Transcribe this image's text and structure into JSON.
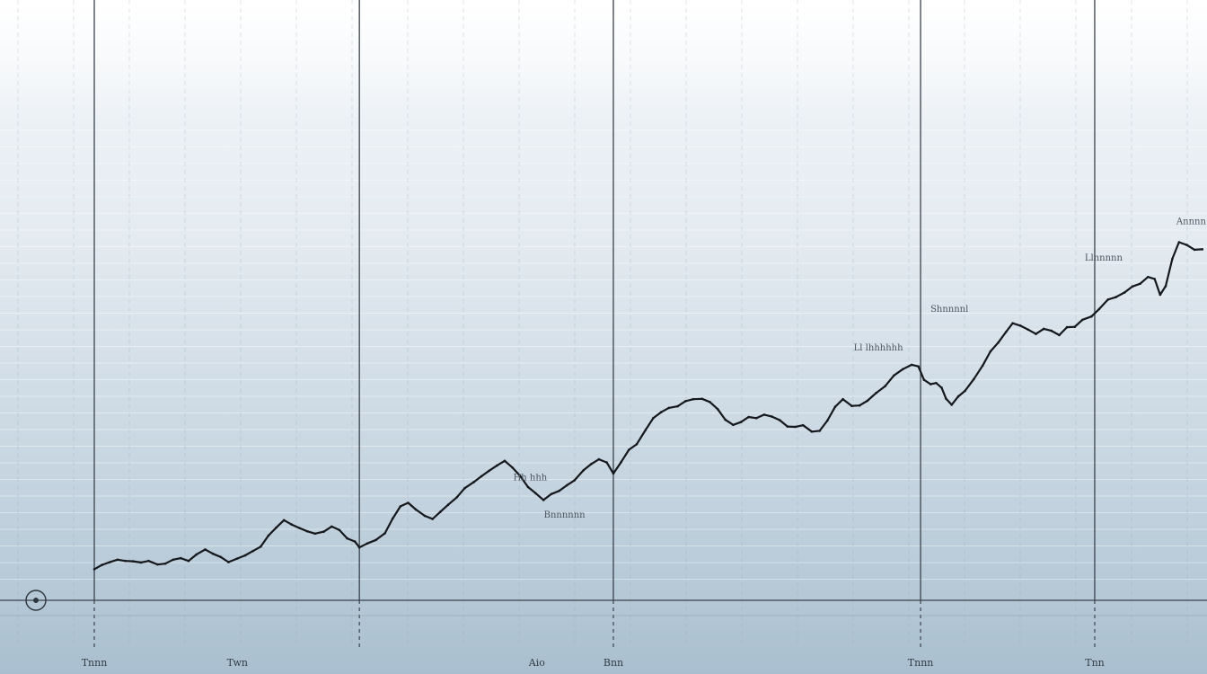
{
  "chart_data": {
    "type": "line",
    "title": "",
    "xlabel": "",
    "ylabel": "",
    "grid": true,
    "legend": "none",
    "xlim": [
      0,
      100
    ],
    "ylim": [
      0,
      100
    ],
    "x_tick_labels": [
      {
        "x": 0.0,
        "label": "Tnnn"
      },
      {
        "x": 12.9,
        "label": "Twn"
      },
      {
        "x": 39.9,
        "label": "Aio"
      },
      {
        "x": 46.8,
        "label": "Bnn"
      },
      {
        "x": 74.5,
        "label": "Tnnn"
      },
      {
        "x": 90.2,
        "label": "Tnn"
      }
    ],
    "event_markers_x": [
      0.0,
      23.9,
      46.8,
      74.5,
      90.2
    ],
    "annotations": [
      {
        "x": 39.3,
        "y": 24.0,
        "text": "Hh hhh"
      },
      {
        "x": 42.4,
        "y": 14.5,
        "text": "Bnnnnnn"
      },
      {
        "x": 70.7,
        "y": 56.8,
        "text": "Ll lhhhhhh"
      },
      {
        "x": 77.1,
        "y": 66.6,
        "text": "Shnnnnl"
      },
      {
        "x": 91.0,
        "y": 79.5,
        "text": "Llnnnnn"
      },
      {
        "x": 98.9,
        "y": 88.8,
        "text": "Annnn"
      }
    ],
    "series": [
      {
        "color": "#15181c",
        "points": [
          [
            0.0,
            1.5
          ],
          [
            0.7,
            2.6
          ],
          [
            1.4,
            3.3
          ],
          [
            2.1,
            3.9
          ],
          [
            2.8,
            3.6
          ],
          [
            3.5,
            3.5
          ],
          [
            4.2,
            3.2
          ],
          [
            4.9,
            3.6
          ],
          [
            5.7,
            2.7
          ],
          [
            6.4,
            2.9
          ],
          [
            7.1,
            3.9
          ],
          [
            7.8,
            4.3
          ],
          [
            8.5,
            3.6
          ],
          [
            9.2,
            5.2
          ],
          [
            10.0,
            6.5
          ],
          [
            10.7,
            5.4
          ],
          [
            11.4,
            4.6
          ],
          [
            12.1,
            3.3
          ],
          [
            12.9,
            4.2
          ],
          [
            13.6,
            5.0
          ],
          [
            14.3,
            6.1
          ],
          [
            15.0,
            7.2
          ],
          [
            15.7,
            10.0
          ],
          [
            16.4,
            12.0
          ],
          [
            17.1,
            13.9
          ],
          [
            17.8,
            12.8
          ],
          [
            18.5,
            11.9
          ],
          [
            19.2,
            11.1
          ],
          [
            19.9,
            10.5
          ],
          [
            20.7,
            11.0
          ],
          [
            21.4,
            12.3
          ],
          [
            22.1,
            11.4
          ],
          [
            22.8,
            9.3
          ],
          [
            23.5,
            8.5
          ],
          [
            23.9,
            7.0
          ],
          [
            24.6,
            8.0
          ],
          [
            25.4,
            8.9
          ],
          [
            26.2,
            10.6
          ],
          [
            26.9,
            14.3
          ],
          [
            27.6,
            17.4
          ],
          [
            28.3,
            18.3
          ],
          [
            29.0,
            16.6
          ],
          [
            29.8,
            15.0
          ],
          [
            30.5,
            14.2
          ],
          [
            31.2,
            16.0
          ],
          [
            31.9,
            17.8
          ],
          [
            32.7,
            19.7
          ],
          [
            33.4,
            22.0
          ],
          [
            34.2,
            23.5
          ],
          [
            34.9,
            25.0
          ],
          [
            35.6,
            26.4
          ],
          [
            36.3,
            27.7
          ],
          [
            37.0,
            28.9
          ],
          [
            37.7,
            27.2
          ],
          [
            38.4,
            25.1
          ],
          [
            39.1,
            22.3
          ],
          [
            39.8,
            20.7
          ],
          [
            40.5,
            19.0
          ],
          [
            41.2,
            20.5
          ],
          [
            41.9,
            21.3
          ],
          [
            42.6,
            22.7
          ],
          [
            43.3,
            24.0
          ],
          [
            44.1,
            26.5
          ],
          [
            44.8,
            28.1
          ],
          [
            45.5,
            29.3
          ],
          [
            46.2,
            28.5
          ],
          [
            46.8,
            25.7
          ],
          [
            47.5,
            28.6
          ],
          [
            48.2,
            31.7
          ],
          [
            48.9,
            33.1
          ],
          [
            49.7,
            36.7
          ],
          [
            50.4,
            39.7
          ],
          [
            51.1,
            41.2
          ],
          [
            51.8,
            42.3
          ],
          [
            52.6,
            42.7
          ],
          [
            53.3,
            44.0
          ],
          [
            54.0,
            44.5
          ],
          [
            54.8,
            44.6
          ],
          [
            55.5,
            43.8
          ],
          [
            56.2,
            42.0
          ],
          [
            56.9,
            39.3
          ],
          [
            57.6,
            38.0
          ],
          [
            58.3,
            38.7
          ],
          [
            59.0,
            40.0
          ],
          [
            59.7,
            39.7
          ],
          [
            60.4,
            40.6
          ],
          [
            61.1,
            40.1
          ],
          [
            61.8,
            39.2
          ],
          [
            62.5,
            37.6
          ],
          [
            63.2,
            37.5
          ],
          [
            63.9,
            37.9
          ],
          [
            64.7,
            36.3
          ],
          [
            65.4,
            36.5
          ],
          [
            66.1,
            39.1
          ],
          [
            66.8,
            42.6
          ],
          [
            67.5,
            44.5
          ],
          [
            68.3,
            42.8
          ],
          [
            69.0,
            42.9
          ],
          [
            69.7,
            44.1
          ],
          [
            70.5,
            46.1
          ],
          [
            71.3,
            47.8
          ],
          [
            72.1,
            50.5
          ],
          [
            72.9,
            52.1
          ],
          [
            73.7,
            53.2
          ],
          [
            74.3,
            52.8
          ],
          [
            74.8,
            49.4
          ],
          [
            75.4,
            48.3
          ],
          [
            75.9,
            48.6
          ],
          [
            76.4,
            47.4
          ],
          [
            76.8,
            44.6
          ],
          [
            77.3,
            43.1
          ],
          [
            77.9,
            45.2
          ],
          [
            78.5,
            46.6
          ],
          [
            79.3,
            49.6
          ],
          [
            80.1,
            53.0
          ],
          [
            80.8,
            56.6
          ],
          [
            81.5,
            58.8
          ],
          [
            82.2,
            61.5
          ],
          [
            82.8,
            63.7
          ],
          [
            83.5,
            63.1
          ],
          [
            84.2,
            62.1
          ],
          [
            84.9,
            61.0
          ],
          [
            85.6,
            62.3
          ],
          [
            86.3,
            61.8
          ],
          [
            87.0,
            60.7
          ],
          [
            87.7,
            62.7
          ],
          [
            88.4,
            62.8
          ],
          [
            89.1,
            64.6
          ],
          [
            89.9,
            65.4
          ],
          [
            90.6,
            67.3
          ],
          [
            91.4,
            69.7
          ],
          [
            92.1,
            70.3
          ],
          [
            92.9,
            71.5
          ],
          [
            93.6,
            73.0
          ],
          [
            94.3,
            73.7
          ],
          [
            95.0,
            75.4
          ],
          [
            95.6,
            74.9
          ],
          [
            96.1,
            70.9
          ],
          [
            96.6,
            73.1
          ],
          [
            97.2,
            80.0
          ],
          [
            97.8,
            84.2
          ],
          [
            98.5,
            83.5
          ],
          [
            99.2,
            82.3
          ],
          [
            99.9,
            82.4
          ]
        ]
      }
    ]
  }
}
